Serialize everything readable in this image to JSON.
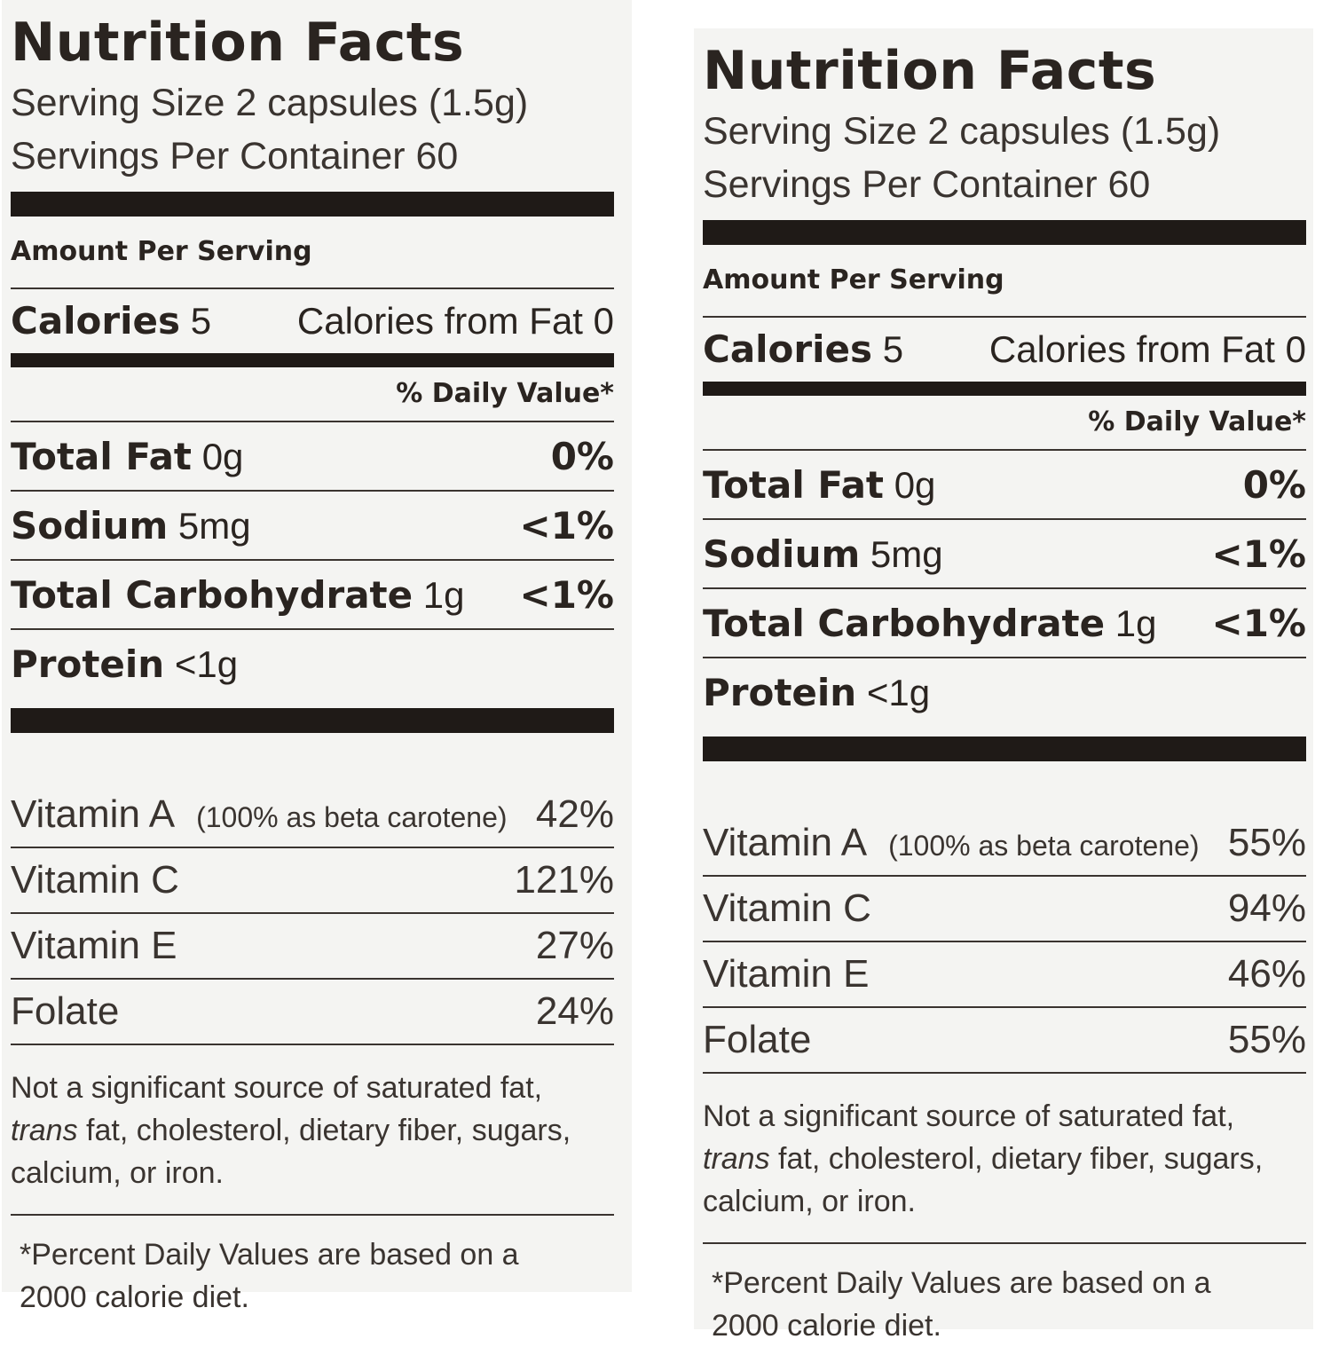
{
  "labels": [
    {
      "title": "Nutrition Facts",
      "serving_size": "Serving Size 2 capsules (1.5g)",
      "servings_per_container": "Servings Per Container 60",
      "amount_per_serving": "Amount Per Serving",
      "calories_label": "Calories",
      "calories_value": "5",
      "calories_from_fat": "Calories from Fat 0",
      "daily_value_header": "% Daily Value*",
      "nutrients": [
        {
          "name": "Total Fat",
          "amount": "0g",
          "dv": "0%"
        },
        {
          "name": "Sodium",
          "amount": "5mg",
          "dv": "<1%"
        },
        {
          "name": "Total Carbohydrate",
          "amount": "1g",
          "dv": "<1%"
        },
        {
          "name": "Protein",
          "amount": "<1g",
          "dv": ""
        }
      ],
      "vitamins": [
        {
          "name": "Vitamin A",
          "note": "(100% as beta carotene)",
          "dv": "42%"
        },
        {
          "name": "Vitamin C",
          "note": "",
          "dv": "121%"
        },
        {
          "name": "Vitamin E",
          "note": "",
          "dv": "27%"
        },
        {
          "name": "Folate",
          "note": "",
          "dv": "24%"
        }
      ],
      "footnote_line1": "Not a significant source of saturated fat,",
      "footnote_trans": "trans",
      "footnote_line2": " fat, cholesterol, dietary fiber, sugars,",
      "footnote_line3": "calcium, or iron.",
      "dv_note_line1": "*Percent Daily Values are based on a",
      "dv_note_line2": "2000 calorie diet."
    },
    {
      "title": "Nutrition Facts",
      "serving_size": "Serving Size 2 capsules (1.5g)",
      "servings_per_container": "Servings Per Container 60",
      "amount_per_serving": "Amount Per Serving",
      "calories_label": "Calories",
      "calories_value": "5",
      "calories_from_fat": "Calories from Fat 0",
      "daily_value_header": "% Daily Value*",
      "nutrients": [
        {
          "name": "Total Fat",
          "amount": "0g",
          "dv": "0%"
        },
        {
          "name": "Sodium",
          "amount": "5mg",
          "dv": "<1%"
        },
        {
          "name": "Total Carbohydrate",
          "amount": "1g",
          "dv": "<1%"
        },
        {
          "name": "Protein",
          "amount": "<1g",
          "dv": ""
        }
      ],
      "vitamins": [
        {
          "name": "Vitamin A",
          "note": "(100% as beta carotene)",
          "dv": "55%"
        },
        {
          "name": "Vitamin C",
          "note": "",
          "dv": "94%"
        },
        {
          "name": "Vitamin E",
          "note": "",
          "dv": "46%"
        },
        {
          "name": "Folate",
          "note": "",
          "dv": "55%"
        }
      ],
      "footnote_line1": "Not a significant source of saturated fat,",
      "footnote_trans": "trans",
      "footnote_line2": " fat, cholesterol, dietary fiber, sugars,",
      "footnote_line3": "calcium, or iron.",
      "dv_note_line1": "*Percent Daily Values are based on a",
      "dv_note_line2": "2000 calorie diet."
    }
  ]
}
